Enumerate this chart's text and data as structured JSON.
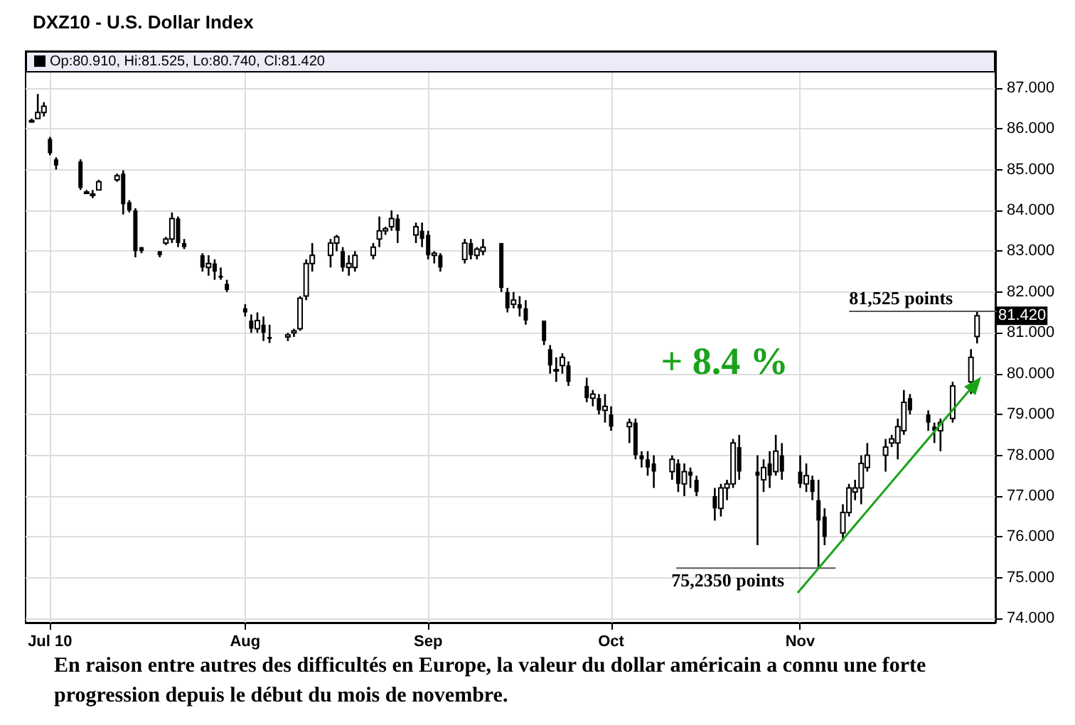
{
  "chart_data": {
    "type": "candlestick",
    "title": "DXZ10 - U.S. Dollar Index",
    "x": [
      "2010-06-28",
      "2010-06-29",
      "2010-06-30",
      "2010-07-01",
      "2010-07-02",
      "2010-07-06",
      "2010-07-07",
      "2010-07-08",
      "2010-07-09",
      "2010-07-12",
      "2010-07-13",
      "2010-07-14",
      "2010-07-15",
      "2010-07-16",
      "2010-07-19",
      "2010-07-20",
      "2010-07-21",
      "2010-07-22",
      "2010-07-23",
      "2010-07-26",
      "2010-07-27",
      "2010-07-28",
      "2010-07-29",
      "2010-07-30",
      "2010-08-02",
      "2010-08-03",
      "2010-08-04",
      "2010-08-05",
      "2010-08-06",
      "2010-08-09",
      "2010-08-10",
      "2010-08-11",
      "2010-08-12",
      "2010-08-13",
      "2010-08-16",
      "2010-08-17",
      "2010-08-18",
      "2010-08-19",
      "2010-08-20",
      "2010-08-23",
      "2010-08-24",
      "2010-08-25",
      "2010-08-26",
      "2010-08-27",
      "2010-08-30",
      "2010-08-31",
      "2010-09-01",
      "2010-09-02",
      "2010-09-03",
      "2010-09-07",
      "2010-09-08",
      "2010-09-09",
      "2010-09-10",
      "2010-09-13",
      "2010-09-14",
      "2010-09-15",
      "2010-09-16",
      "2010-09-17",
      "2010-09-20",
      "2010-09-21",
      "2010-09-22",
      "2010-09-23",
      "2010-09-24",
      "2010-09-27",
      "2010-09-28",
      "2010-09-29",
      "2010-09-30",
      "2010-10-01",
      "2010-10-04",
      "2010-10-05",
      "2010-10-06",
      "2010-10-07",
      "2010-10-08",
      "2010-10-11",
      "2010-10-12",
      "2010-10-13",
      "2010-10-14",
      "2010-10-15",
      "2010-10-18",
      "2010-10-19",
      "2010-10-20",
      "2010-10-21",
      "2010-10-22",
      "2010-10-25",
      "2010-10-26",
      "2010-10-27",
      "2010-10-28",
      "2010-10-29",
      "2010-11-01",
      "2010-11-02",
      "2010-11-03",
      "2010-11-04",
      "2010-11-05",
      "2010-11-08",
      "2010-11-09",
      "2010-11-10",
      "2010-11-11",
      "2010-11-12",
      "2010-11-15",
      "2010-11-16",
      "2010-11-17",
      "2010-11-18",
      "2010-11-19",
      "2010-11-22",
      "2010-11-23",
      "2010-11-24",
      "2010-11-26",
      "2010-11-29",
      "2010-11-30"
    ],
    "ohlc": [
      [
        86.2,
        86.25,
        86.15,
        86.2
      ],
      [
        86.25,
        86.85,
        86.25,
        86.4
      ],
      [
        86.4,
        86.65,
        86.3,
        86.55
      ],
      [
        85.75,
        85.8,
        85.35,
        85.4
      ],
      [
        85.25,
        85.3,
        85.0,
        85.1
      ],
      [
        85.2,
        85.25,
        84.5,
        84.55
      ],
      [
        84.45,
        84.5,
        84.4,
        84.45
      ],
      [
        84.4,
        84.5,
        84.3,
        84.4
      ],
      [
        84.5,
        84.75,
        84.5,
        84.7
      ],
      [
        84.75,
        84.9,
        84.7,
        84.85
      ],
      [
        84.9,
        84.98,
        83.9,
        84.15
      ],
      [
        84.2,
        84.25,
        83.95,
        84.0
      ],
      [
        84.0,
        84.05,
        82.85,
        83.0
      ],
      [
        83.1,
        83.1,
        82.95,
        83.0
      ],
      [
        83.0,
        83.0,
        82.85,
        82.9
      ],
      [
        83.2,
        83.35,
        83.15,
        83.3
      ],
      [
        83.3,
        83.95,
        83.2,
        83.8
      ],
      [
        83.8,
        83.85,
        83.1,
        83.2
      ],
      [
        83.2,
        83.3,
        83.05,
        83.1
      ],
      [
        82.9,
        82.95,
        82.5,
        82.6
      ],
      [
        82.6,
        82.9,
        82.4,
        82.7
      ],
      [
        82.7,
        82.8,
        82.3,
        82.5
      ],
      [
        82.4,
        82.6,
        82.3,
        82.35
      ],
      [
        82.2,
        82.3,
        82.0,
        82.05
      ],
      [
        81.6,
        81.7,
        81.4,
        81.5
      ],
      [
        81.3,
        81.45,
        81.0,
        81.1
      ],
      [
        81.1,
        81.5,
        81.0,
        81.3
      ],
      [
        81.2,
        81.4,
        80.8,
        81.0
      ],
      [
        80.9,
        81.2,
        80.75,
        80.85
      ],
      [
        80.9,
        81.0,
        80.8,
        80.95
      ],
      [
        81.0,
        81.1,
        80.9,
        81.05
      ],
      [
        81.1,
        81.9,
        81.05,
        81.85
      ],
      [
        81.9,
        82.8,
        81.8,
        82.7
      ],
      [
        82.7,
        83.2,
        82.5,
        82.9
      ],
      [
        82.9,
        83.3,
        82.6,
        83.2
      ],
      [
        83.2,
        83.4,
        83.0,
        83.35
      ],
      [
        83.0,
        83.1,
        82.5,
        82.6
      ],
      [
        82.6,
        82.9,
        82.4,
        82.7
      ],
      [
        82.6,
        83.0,
        82.5,
        82.9
      ],
      [
        82.9,
        83.2,
        82.8,
        83.1
      ],
      [
        83.3,
        83.85,
        83.1,
        83.5
      ],
      [
        83.5,
        83.6,
        83.4,
        83.55
      ],
      [
        83.6,
        84.0,
        83.5,
        83.8
      ],
      [
        83.8,
        83.9,
        83.2,
        83.5
      ],
      [
        83.4,
        83.7,
        83.2,
        83.6
      ],
      [
        83.5,
        83.7,
        83.1,
        83.3
      ],
      [
        83.4,
        83.5,
        82.8,
        82.9
      ],
      [
        82.9,
        83.0,
        82.7,
        82.95
      ],
      [
        82.9,
        82.95,
        82.5,
        82.6
      ],
      [
        82.8,
        83.3,
        82.7,
        83.2
      ],
      [
        83.2,
        83.3,
        82.8,
        82.9
      ],
      [
        82.9,
        83.1,
        82.8,
        83.05
      ],
      [
        83.0,
        83.3,
        82.9,
        83.1
      ],
      [
        83.2,
        83.2,
        82.0,
        82.1
      ],
      [
        82.0,
        82.1,
        81.5,
        81.6
      ],
      [
        81.7,
        82.0,
        81.6,
        81.8
      ],
      [
        81.7,
        81.9,
        81.4,
        81.6
      ],
      [
        81.6,
        81.8,
        81.2,
        81.3
      ],
      [
        81.3,
        81.3,
        80.7,
        80.8
      ],
      [
        80.6,
        80.7,
        80.0,
        80.2
      ],
      [
        80.1,
        80.4,
        79.8,
        80.1
      ],
      [
        80.2,
        80.5,
        80.0,
        80.4
      ],
      [
        80.2,
        80.3,
        79.7,
        79.8
      ],
      [
        79.7,
        79.9,
        79.3,
        79.4
      ],
      [
        79.4,
        79.6,
        79.2,
        79.5
      ],
      [
        79.4,
        79.5,
        79.0,
        79.1
      ],
      [
        79.1,
        79.5,
        78.8,
        79.2
      ],
      [
        79.0,
        79.2,
        78.6,
        78.7
      ],
      [
        78.7,
        78.9,
        78.3,
        78.8
      ],
      [
        78.8,
        78.9,
        77.9,
        78.0
      ],
      [
        78.0,
        78.1,
        77.7,
        77.9
      ],
      [
        77.9,
        78.1,
        77.5,
        77.7
      ],
      [
        77.8,
        78.0,
        77.2,
        77.6
      ],
      [
        77.6,
        78.0,
        77.4,
        77.9
      ],
      [
        77.8,
        77.9,
        77.1,
        77.3
      ],
      [
        77.3,
        77.8,
        77.0,
        77.6
      ],
      [
        77.6,
        77.7,
        77.2,
        77.5
      ],
      [
        77.4,
        77.5,
        77.0,
        77.1
      ],
      [
        77.0,
        77.2,
        76.4,
        76.7
      ],
      [
        76.7,
        77.3,
        76.5,
        77.2
      ],
      [
        77.2,
        77.4,
        76.9,
        77.3
      ],
      [
        77.3,
        78.4,
        77.2,
        78.3
      ],
      [
        78.2,
        78.5,
        77.4,
        77.6
      ],
      [
        77.6,
        78.0,
        75.8,
        77.5
      ],
      [
        77.4,
        77.9,
        77.1,
        77.7
      ],
      [
        77.8,
        78.1,
        77.2,
        77.5
      ],
      [
        77.6,
        78.5,
        77.5,
        78.1
      ],
      [
        78.0,
        78.3,
        77.4,
        77.6
      ],
      [
        77.6,
        78.0,
        77.2,
        77.3
      ],
      [
        77.3,
        77.8,
        77.1,
        77.5
      ],
      [
        77.4,
        77.5,
        76.9,
        77.1
      ],
      [
        76.9,
        77.4,
        75.235,
        76.4
      ],
      [
        76.5,
        76.7,
        75.8,
        76.0
      ],
      [
        76.1,
        76.8,
        75.9,
        76.6
      ],
      [
        76.6,
        77.3,
        76.5,
        77.2
      ],
      [
        77.1,
        77.4,
        76.9,
        77.2
      ],
      [
        77.2,
        78.0,
        76.8,
        77.8
      ],
      [
        77.7,
        78.3,
        77.6,
        78.0
      ],
      [
        78.0,
        78.4,
        77.6,
        78.2
      ],
      [
        78.3,
        78.5,
        78.2,
        78.4
      ],
      [
        78.3,
        78.9,
        77.9,
        78.7
      ],
      [
        78.6,
        79.6,
        78.5,
        79.3
      ],
      [
        79.4,
        79.5,
        79.0,
        79.1
      ],
      [
        79.0,
        79.1,
        78.6,
        78.8
      ],
      [
        78.7,
        78.8,
        78.3,
        78.6
      ],
      [
        78.6,
        78.9,
        78.1,
        78.8
      ],
      [
        78.9,
        79.8,
        78.8,
        79.7
      ],
      [
        79.8,
        80.6,
        79.5,
        80.4
      ],
      [
        80.91,
        81.525,
        80.74,
        81.42
      ]
    ],
    "color": "#000000",
    "xlim": [
      "2010-06-27",
      "2010-12-03"
    ],
    "xticks": [
      {
        "value": "2010-07-01",
        "label": "Jul 10"
      },
      {
        "value": "2010-08-02",
        "label": "Aug"
      },
      {
        "value": "2010-09-01",
        "label": "Sep"
      },
      {
        "value": "2010-10-01",
        "label": "Oct"
      },
      {
        "value": "2010-11-01",
        "label": "Nov"
      }
    ],
    "ylim": [
      73.9,
      87.9
    ],
    "yticks": [
      {
        "value": 74,
        "label": "74.000"
      },
      {
        "value": 75,
        "label": "75.000"
      },
      {
        "value": 76,
        "label": "76.000"
      },
      {
        "value": 77,
        "label": "77.000"
      },
      {
        "value": 78,
        "label": "78.000"
      },
      {
        "value": 79,
        "label": "79.000"
      },
      {
        "value": 80,
        "label": "80.000"
      },
      {
        "value": 81,
        "label": "81.000"
      },
      {
        "value": 82,
        "label": "82.000"
      },
      {
        "value": 83,
        "label": "83.000"
      },
      {
        "value": 84,
        "label": "84.000"
      },
      {
        "value": 85,
        "label": "85.000"
      },
      {
        "value": 86,
        "label": "86.000"
      },
      {
        "value": 87,
        "label": "87.000"
      }
    ],
    "grid": true,
    "annotations": [
      "Op:80.910, Hi:81.525, Lo:80.740, Cl:81.420",
      {
        "text": "81.420",
        "x": "2010-11-30",
        "y": 81.42
      },
      {
        "text": "81,525 points",
        "x": "2010-11-30",
        "y": 81.525
      },
      {
        "text": "75,2350 points",
        "x": "2010-11-04",
        "y": 75.235
      },
      "+ 8.4 %",
      "En raison entre autres des difficultés en Europe, la valeur du dollar américain a connu une forte progression depuis le début du mois de novembre."
    ]
  }
}
